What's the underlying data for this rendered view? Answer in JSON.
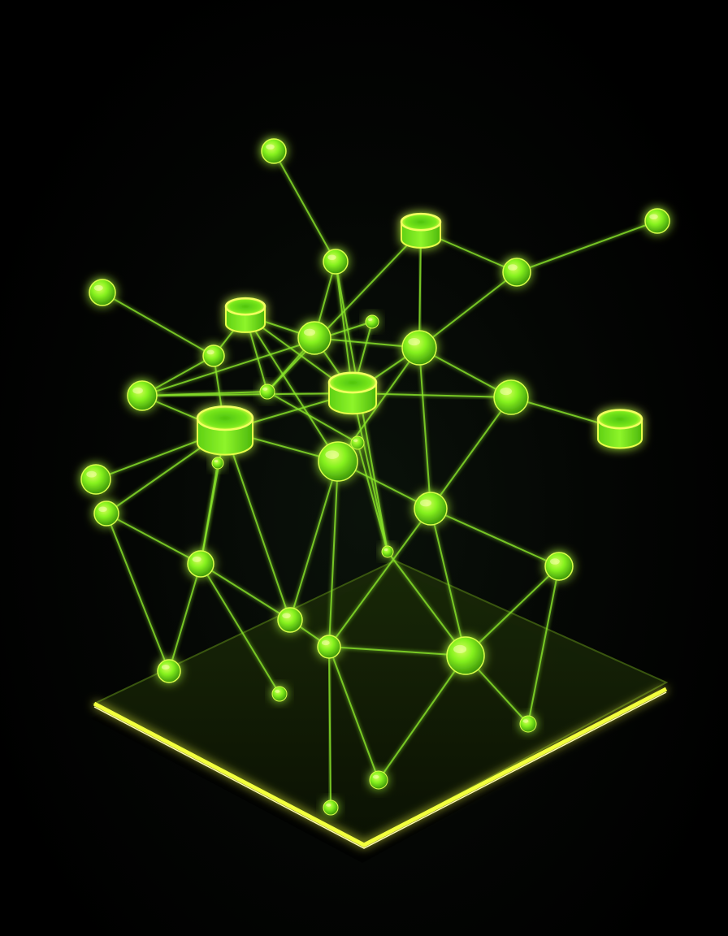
{
  "scene": {
    "background_color": "#000000",
    "accent_color": "#7CFC1A",
    "glow_color": "#E6FF3A",
    "platform_fill": "#101a06",
    "platform_edge": "#F2FF3C",
    "edge_color": "#8AE62C"
  }
}
